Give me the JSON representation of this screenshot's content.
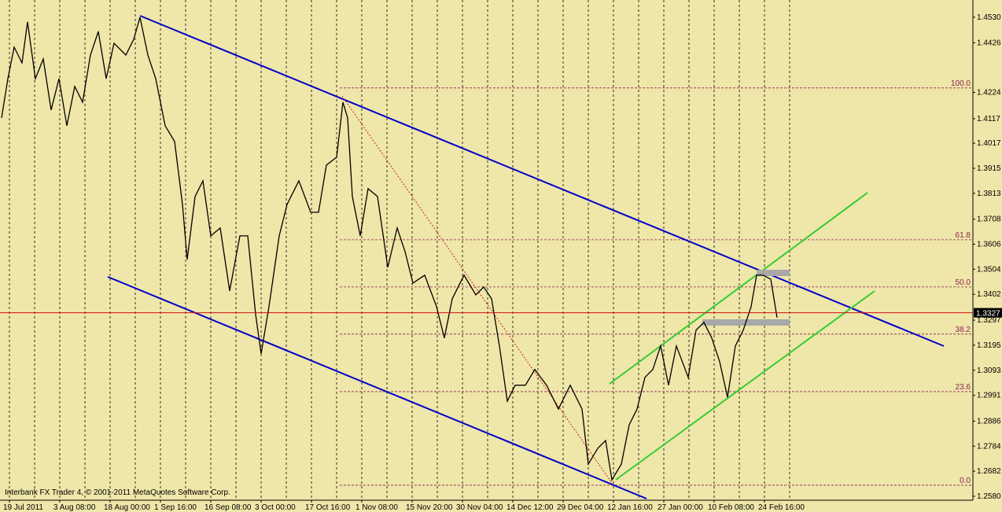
{
  "chart_data": {
    "type": "line",
    "footer": "Interbank FX Trader 4, © 2001-2011 MetaQuotes Software Corp.",
    "xlim": [
      0,
      1237
    ],
    "ylim": [
      1.2564,
      1.46
    ],
    "xticks": [
      {
        "value": 2,
        "label": "19 Jul 2011"
      },
      {
        "value": 66,
        "label": "3 Aug 08:00"
      },
      {
        "value": 130,
        "label": "18 Aug 00:00"
      },
      {
        "value": 194,
        "label": "1 Sep 16:00"
      },
      {
        "value": 258,
        "label": "16 Sep 08:00"
      },
      {
        "value": 322,
        "label": "3 Oct 00:00"
      },
      {
        "value": 386,
        "label": "17 Oct 16:00"
      },
      {
        "value": 450,
        "label": "1 Nov 08:00"
      },
      {
        "value": 514,
        "label": "15 Nov 20:00"
      },
      {
        "value": 578,
        "label": "30 Nov 04:00"
      },
      {
        "value": 642,
        "label": "14 Dec 12:00"
      },
      {
        "value": 706,
        "label": "29 Dec 04:00"
      },
      {
        "value": 770,
        "label": "12 Jan 16:00"
      },
      {
        "value": 834,
        "label": "27 Jan 00:00"
      },
      {
        "value": 898,
        "label": "10 Feb 08:00"
      },
      {
        "value": 962,
        "label": "24 Feb 16:00"
      }
    ],
    "yticks": [
      {
        "value": 1.453,
        "label": "1.4530"
      },
      {
        "value": 1.4426,
        "label": "1.4426"
      },
      {
        "value": 1.4224,
        "label": "1.4224"
      },
      {
        "value": 1.4117,
        "label": "1.4117"
      },
      {
        "value": 1.4017,
        "label": "1.4017"
      },
      {
        "value": 1.3915,
        "label": "1.3915"
      },
      {
        "value": 1.3813,
        "label": "1.3813"
      },
      {
        "value": 1.3708,
        "label": "1.3708"
      },
      {
        "value": 1.3606,
        "label": "1.3606"
      },
      {
        "value": 1.3504,
        "label": "1.3504"
      },
      {
        "value": 1.3402,
        "label": "1.3402"
      },
      {
        "value": 1.3297,
        "label": "1.3297"
      },
      {
        "value": 1.3195,
        "label": "1.3195"
      },
      {
        "value": 1.3093,
        "label": "1.3093"
      },
      {
        "value": 1.2991,
        "label": "1.2991"
      },
      {
        "value": 1.2886,
        "label": "1.2886"
      },
      {
        "value": 1.2784,
        "label": "1.2784"
      },
      {
        "value": 1.2682,
        "label": "1.2682"
      },
      {
        "value": 1.258,
        "label": "1.2580"
      }
    ],
    "current_price": {
      "value": 1.3327,
      "label": "1.3327"
    },
    "fibo_levels": [
      {
        "label": "100.0",
        "price": 1.4242
      },
      {
        "label": "61.8",
        "price": 1.3624
      },
      {
        "label": "50.0",
        "price": 1.3432
      },
      {
        "label": "38.2",
        "price": 1.324
      },
      {
        "label": "23.6",
        "price": 1.3006
      },
      {
        "label": "0.0",
        "price": 1.2625
      }
    ],
    "series": [
      {
        "color": "#000000",
        "x": [
          2,
          10,
          18,
          28,
          35,
          45,
          55,
          65,
          75,
          85,
          95,
          105,
          115,
          125,
          135,
          145,
          160,
          170,
          178,
          188,
          198,
          210,
          222,
          232,
          238,
          248,
          258,
          268,
          280,
          292,
          305,
          315,
          325,
          332,
          342,
          355,
          365,
          380,
          395,
          405,
          415,
          428,
          436,
          442,
          448,
          458,
          468,
          480,
          493,
          505,
          515,
          525,
          540,
          555,
          565,
          575,
          590,
          605,
          615,
          625,
          635,
          645,
          655,
          668,
          680,
          695,
          710,
          725,
          740,
          748,
          760,
          770,
          778,
          790,
          800,
          810,
          820,
          830,
          840,
          850,
          860,
          875,
          885,
          895,
          905,
          915,
          925,
          935,
          945,
          955,
          962,
          970,
          980,
          988
        ],
        "values": [
          1.412,
          1.428,
          1.4408,
          1.4344,
          1.4511,
          1.428,
          1.436,
          1.4152,
          1.428,
          1.4088,
          1.4248,
          1.4184,
          1.4376,
          1.4472,
          1.428,
          1.4424,
          1.4376,
          1.444,
          1.453,
          1.4376,
          1.428,
          1.4088,
          1.4024,
          1.3768,
          1.3544,
          1.38,
          1.3864,
          1.364,
          1.3672,
          1.3416,
          1.364,
          1.364,
          1.332,
          1.316,
          1.3352,
          1.364,
          1.3768,
          1.3864,
          1.3736,
          1.3736,
          1.3928,
          1.396,
          1.4184,
          1.412,
          1.38,
          1.364,
          1.3832,
          1.38,
          1.3512,
          1.3672,
          1.3576,
          1.3448,
          1.348,
          1.3352,
          1.3224,
          1.3384,
          1.348,
          1.34,
          1.3432,
          1.3384,
          1.3192,
          1.2967,
          1.3032,
          1.3032,
          1.3096,
          1.3032,
          1.2935,
          1.3032,
          1.2935,
          1.2711,
          1.2775,
          1.2807,
          1.2647,
          1.2711,
          1.2871,
          1.2935,
          1.3064,
          1.3096,
          1.3192,
          1.3032,
          1.3192,
          1.3064,
          1.3256,
          1.3288,
          1.3224,
          1.3128,
          1.2983,
          1.3192,
          1.3256,
          1.3352,
          1.348,
          1.348,
          1.3464,
          1.3307
        ]
      }
    ]
  }
}
